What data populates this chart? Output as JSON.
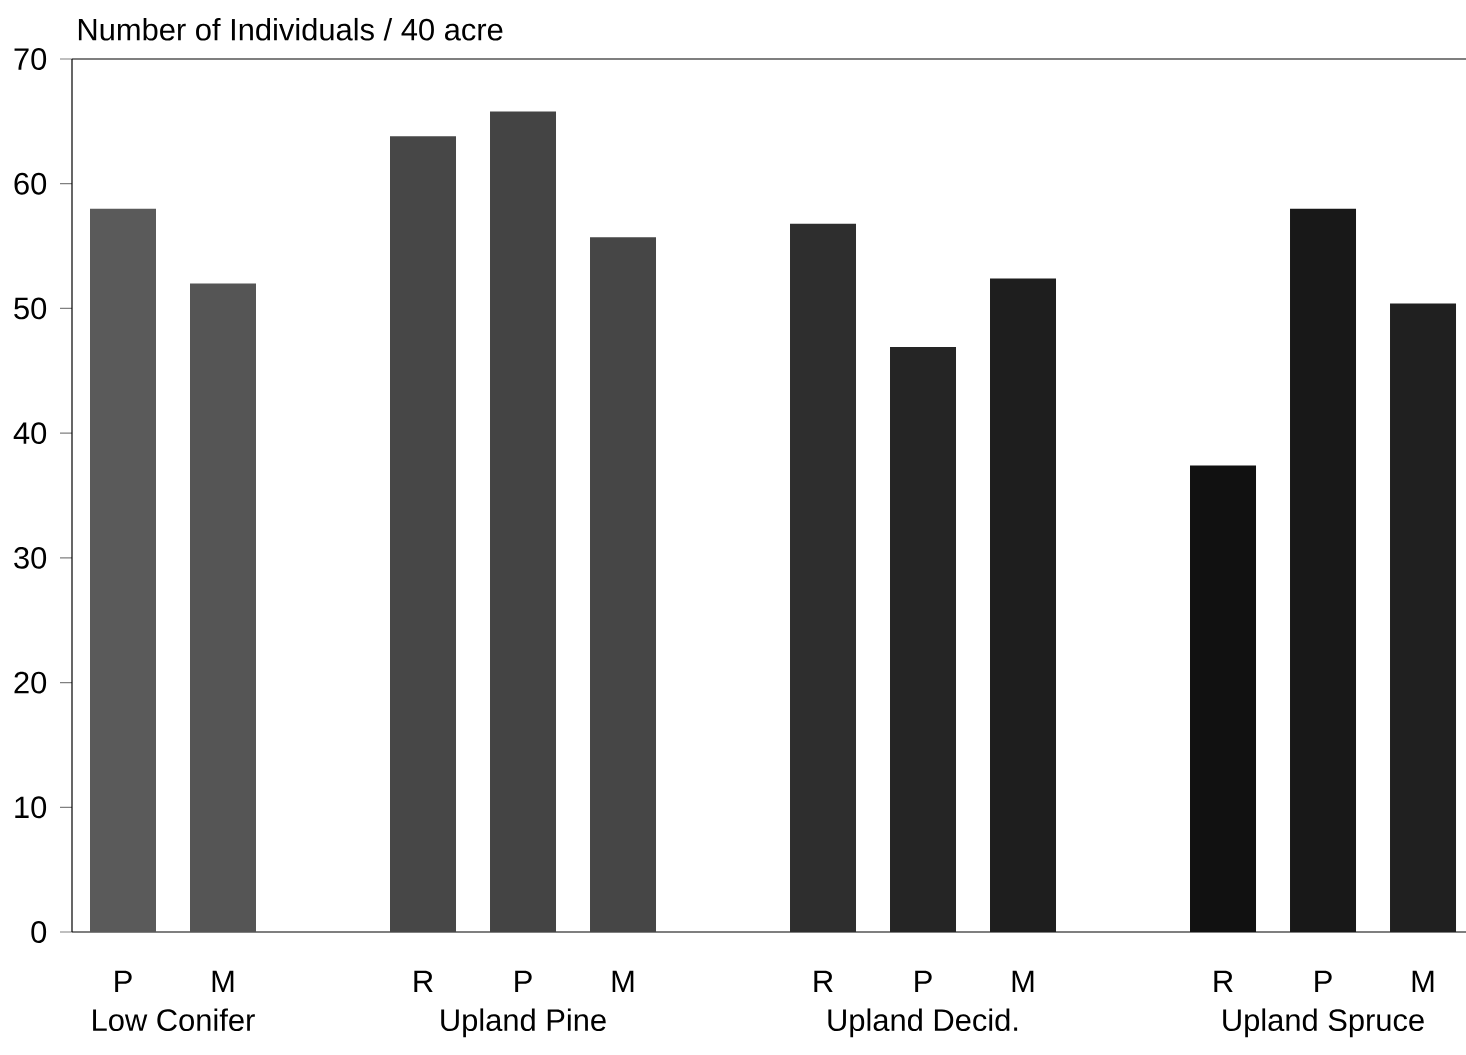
{
  "chart_data": {
    "type": "bar",
    "ylabel": "Number of Individuals / 40 acre",
    "categories": [
      "P",
      "M",
      null,
      "R",
      "P",
      "M",
      null,
      "R",
      "P",
      "M",
      null,
      "R",
      "P",
      "M"
    ],
    "values": [
      58,
      52,
      null,
      63.8,
      65.8,
      55.7,
      null,
      56.8,
      46.9,
      52.4,
      null,
      37.4,
      58,
      50.4
    ],
    "colors": [
      "#5a5a5a",
      "#555555",
      null,
      "#474747",
      "#444444",
      "#464646",
      null,
      "#2e2e2e",
      "#252525",
      "#1e1e1e",
      null,
      "#111111",
      "#181818",
      "#202020"
    ],
    "ylim": [
      0,
      70
    ],
    "yticks": [
      0,
      10,
      20,
      30,
      40,
      50,
      60,
      70
    ],
    "annotations": [
      "Low Conifer",
      "Upland Pine",
      "Upland Decid.",
      "Upland Spruce"
    ]
  }
}
